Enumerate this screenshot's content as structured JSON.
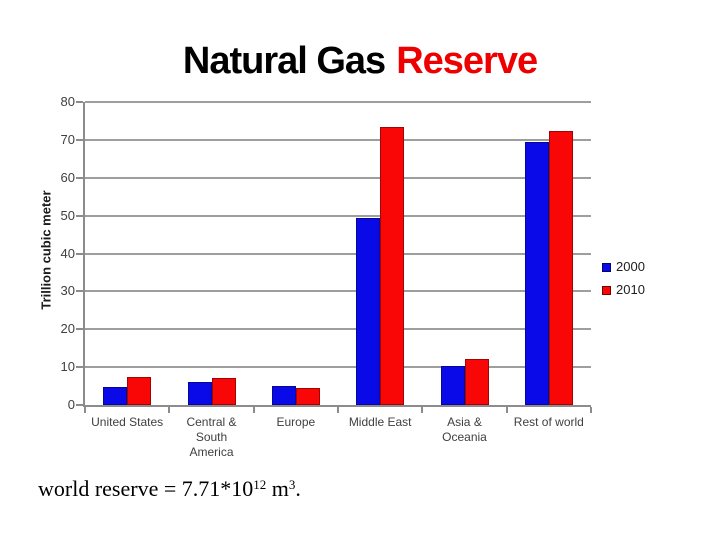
{
  "title": {
    "text_black": "Natural Gas",
    "text_red": "Reserve"
  },
  "chart_data": {
    "type": "bar",
    "title": "Natural Gas Reserve",
    "xlabel": "",
    "ylabel": "Trillion cubic meter",
    "ylim": [
      0,
      80
    ],
    "yticks": [
      0,
      10,
      20,
      30,
      40,
      50,
      60,
      70,
      80
    ],
    "grid": true,
    "legend_position": "right",
    "categories": [
      "United States",
      "Central & South America",
      "Europe",
      "Middle East",
      "Asia & Oceania",
      "Rest of world"
    ],
    "category_label_lines": [
      [
        "United States"
      ],
      [
        "Central &",
        "South",
        "America"
      ],
      [
        "Europe"
      ],
      [
        "Middle East"
      ],
      [
        "Asia &",
        "Oceania"
      ],
      [
        "Rest of world"
      ]
    ],
    "series": [
      {
        "name": "2000",
        "color": "#0a0ae8",
        "values": [
          4.8,
          6.0,
          4.9,
          49.4,
          10.2,
          69.5
        ]
      },
      {
        "name": "2010",
        "color": "#f90606",
        "values": [
          7.4,
          7.2,
          4.5,
          73.5,
          12.2,
          72.3
        ]
      }
    ]
  },
  "note": {
    "prefix": "world reserve = 7.71*10",
    "exponent": "12",
    "unit": " m",
    "unit_exponent": "3",
    "suffix": "."
  },
  "colors": {
    "title_red": "#ee0000",
    "gridline": "#9e9e9e",
    "axis": "#8c8c8c",
    "tick_label": "#404040"
  }
}
